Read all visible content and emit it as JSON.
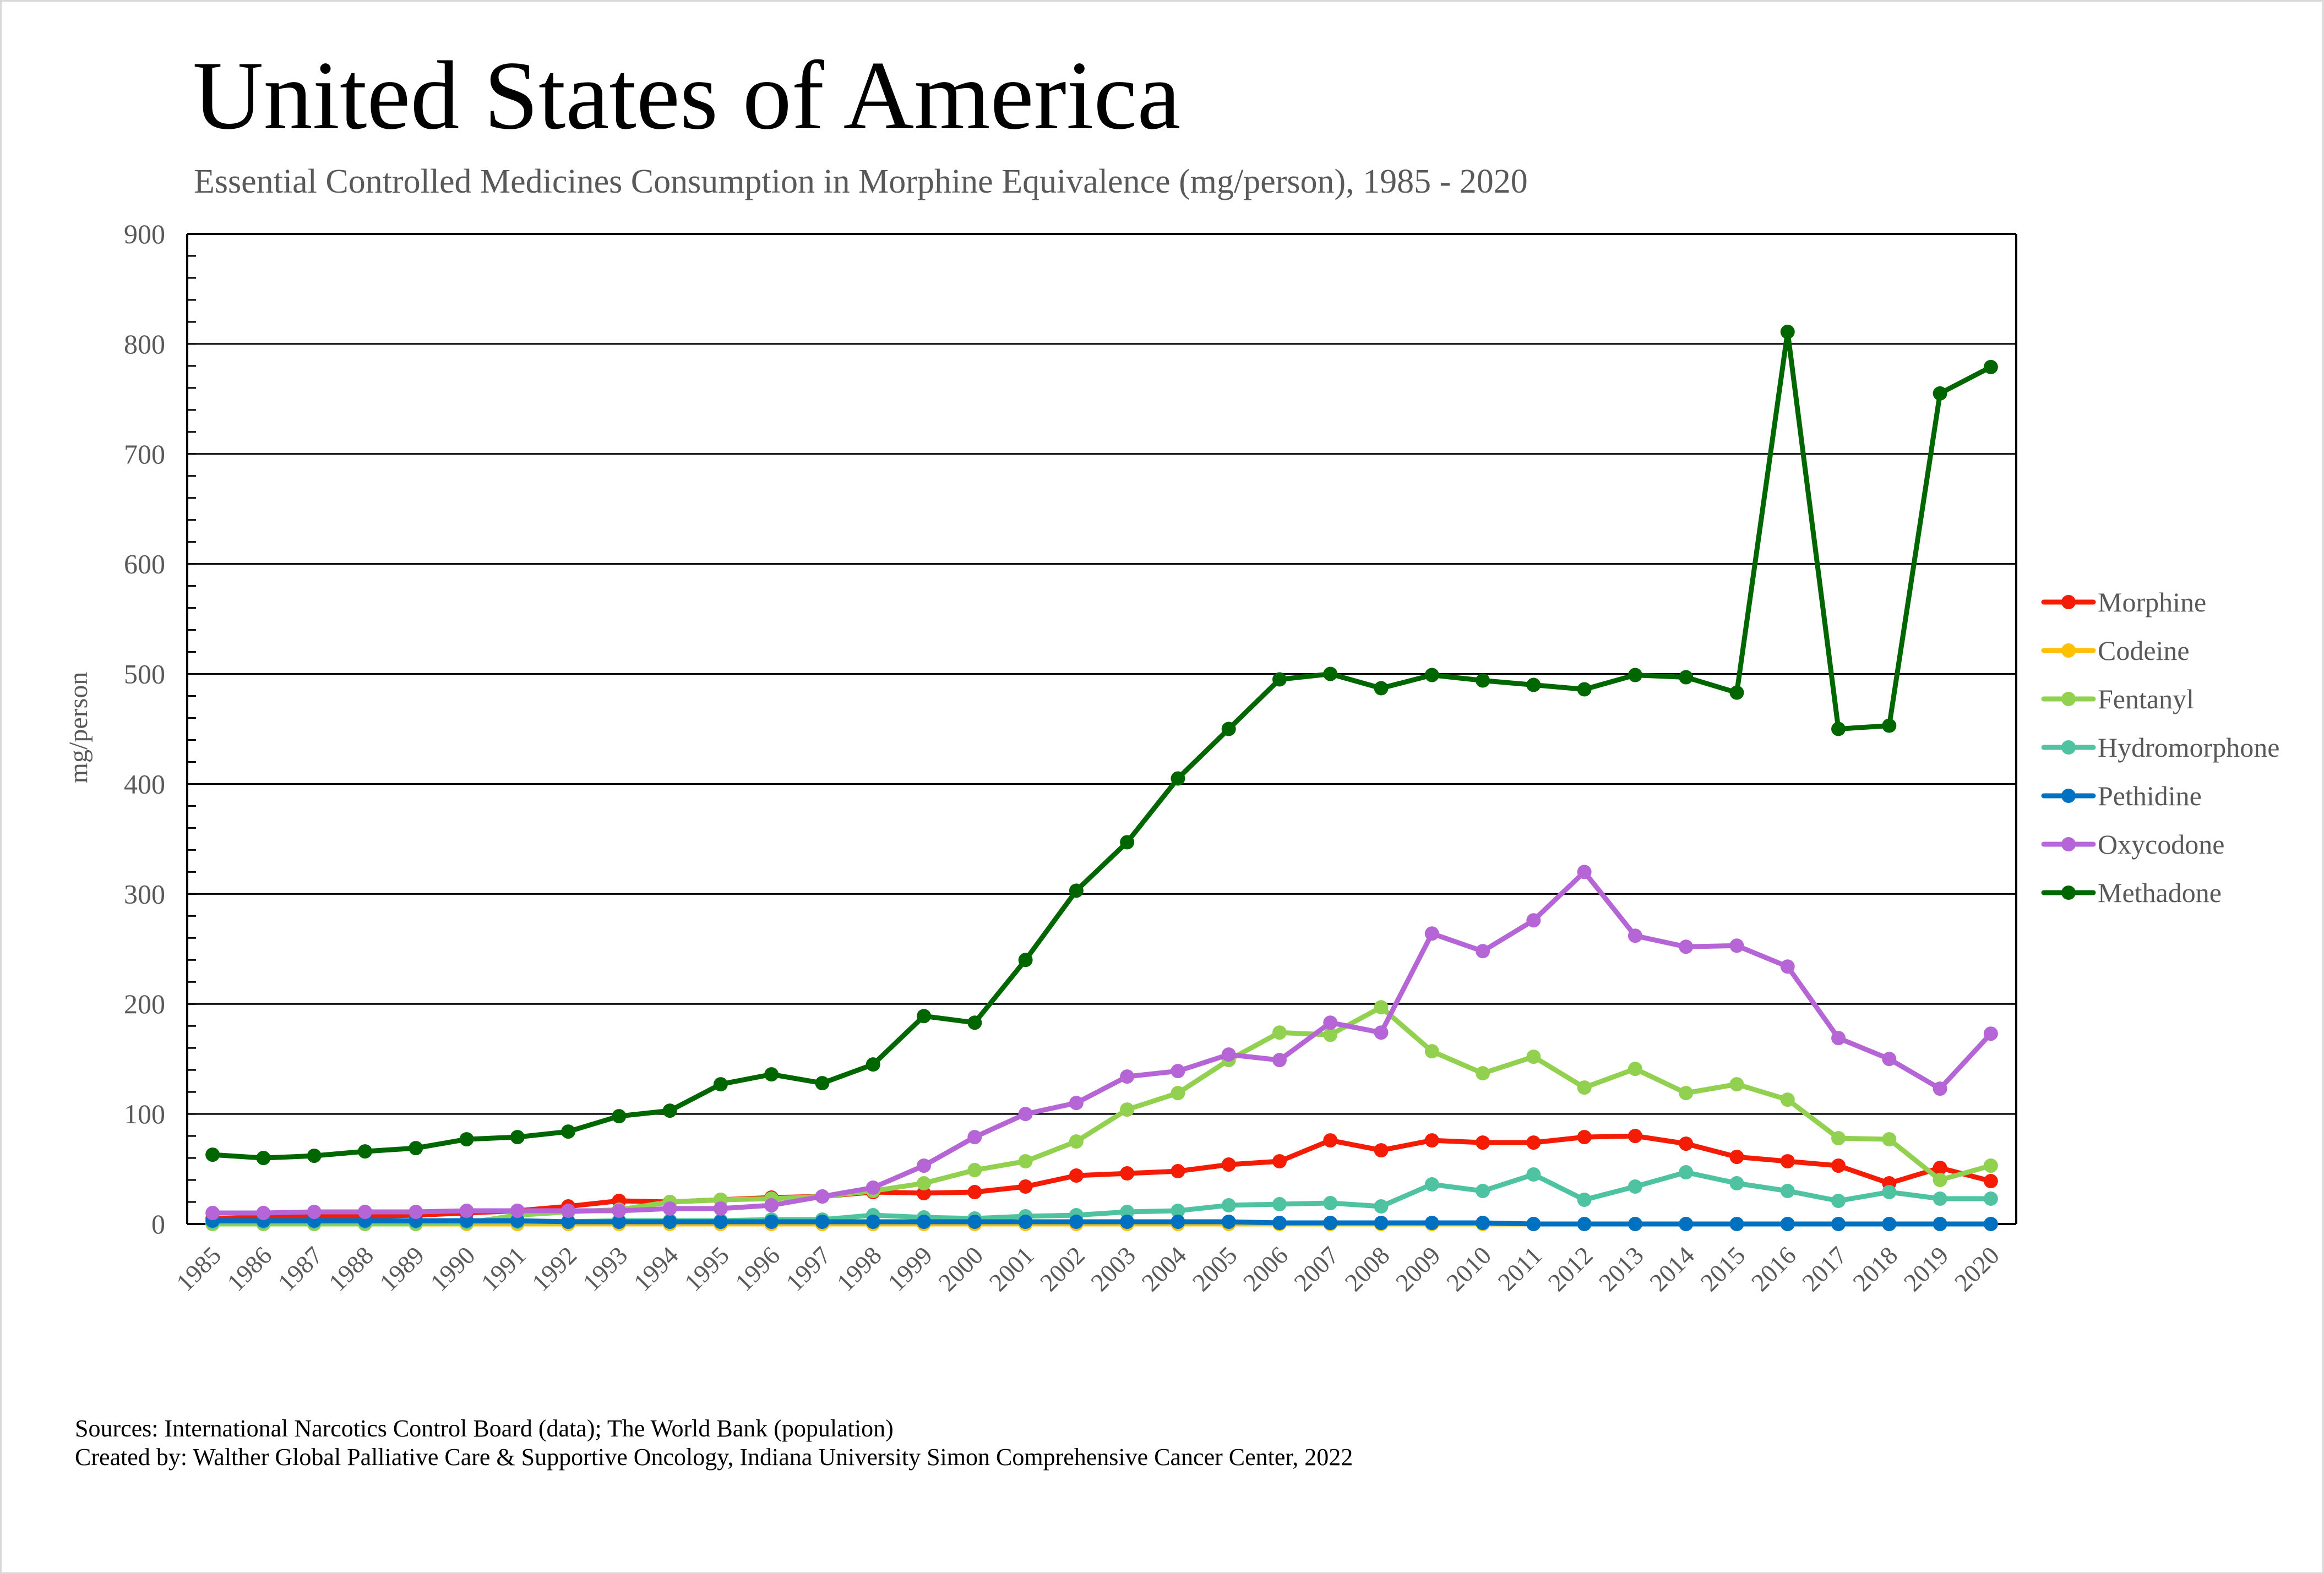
{
  "page": {
    "title": "United States of America",
    "subtitle": "Essential Controlled Medicines Consumption in Morphine Equivalence (mg/person), 1985 - 2020",
    "footer_sources": "Sources: International Narcotics Control Board (data); The World Bank (population)",
    "footer_created": "Created by: Walther Global Palliative Care & Supportive Oncology, Indiana University Simon Comprehensive Cancer Center, 2022"
  },
  "chart_data": {
    "type": "line",
    "title": "United States of America",
    "subtitle": "Essential Controlled Medicines Consumption in Morphine Equivalence (mg/person), 1985 - 2020",
    "xlabel": "",
    "ylabel": "mg/person",
    "ylim": [
      0,
      900
    ],
    "yticks": [
      0,
      100,
      200,
      300,
      400,
      500,
      600,
      700,
      800,
      900
    ],
    "grid": true,
    "legend_position": "right",
    "x": [
      "1985",
      "1986",
      "1987",
      "1988",
      "1989",
      "1990",
      "1991",
      "1992",
      "1993",
      "1994",
      "1995",
      "1996",
      "1997",
      "1998",
      "1999",
      "2000",
      "2001",
      "2002",
      "2003",
      "2004",
      "2005",
      "2006",
      "2007",
      "2008",
      "2009",
      "2010",
      "2011",
      "2012",
      "2013",
      "2014",
      "2015",
      "2016",
      "2017",
      "2018",
      "2019",
      "2020"
    ],
    "series": [
      {
        "name": "Morphine",
        "color": "#f41c04",
        "values": [
          5,
          6,
          7,
          7,
          8,
          10,
          12,
          16,
          21,
          20,
          22,
          24,
          25,
          29,
          28,
          29,
          34,
          44,
          46,
          48,
          54,
          57,
          76,
          67,
          76,
          74,
          74,
          79,
          80,
          73,
          61,
          57,
          53,
          37,
          51,
          39
        ]
      },
      {
        "name": "Codeine",
        "color": "#ffc000",
        "values": [
          0,
          0,
          0,
          0,
          0,
          0,
          0,
          0,
          0,
          0,
          0,
          0,
          0,
          0,
          0,
          0,
          0,
          0,
          0,
          0,
          0,
          0,
          0,
          0,
          0,
          0,
          0,
          0,
          0,
          0,
          0,
          0,
          0,
          0,
          0,
          0
        ]
      },
      {
        "name": "Fentanyl",
        "color": "#92d050",
        "values": [
          0,
          0,
          0,
          0,
          0,
          1,
          8,
          11,
          13,
          20,
          22,
          23,
          25,
          30,
          37,
          49,
          57,
          75,
          104,
          119,
          149,
          174,
          172,
          197,
          157,
          137,
          152,
          124,
          141,
          119,
          127,
          113,
          78,
          77,
          40,
          53
        ]
      },
      {
        "name": "Hydromorphone",
        "color": "#4fc3a1",
        "values": [
          2,
          2,
          2,
          2,
          2,
          2,
          2,
          2,
          3,
          3,
          3,
          4,
          4,
          8,
          6,
          5,
          7,
          8,
          11,
          12,
          17,
          18,
          19,
          16,
          36,
          30,
          45,
          22,
          34,
          47,
          37,
          30,
          21,
          29,
          23,
          23
        ]
      },
      {
        "name": "Pethidine",
        "color": "#0070c0",
        "values": [
          3,
          3,
          3,
          3,
          3,
          3,
          3,
          2,
          2,
          2,
          2,
          2,
          2,
          2,
          2,
          2,
          2,
          2,
          2,
          2,
          2,
          1,
          1,
          1,
          1,
          1,
          0,
          0,
          0,
          0,
          0,
          0,
          0,
          0,
          0,
          0
        ]
      },
      {
        "name": "Oxycodone",
        "color": "#b665d6",
        "values": [
          10,
          10,
          11,
          11,
          11,
          12,
          12,
          12,
          12,
          14,
          14,
          17,
          25,
          33,
          53,
          79,
          100,
          110,
          134,
          139,
          154,
          149,
          183,
          174,
          264,
          248,
          276,
          320,
          262,
          252,
          253,
          234,
          169,
          150,
          123,
          173
        ]
      },
      {
        "name": "Methadone",
        "color": "#006600",
        "values": [
          63,
          60,
          62,
          66,
          69,
          77,
          79,
          84,
          98,
          103,
          127,
          136,
          128,
          145,
          189,
          183,
          240,
          303,
          347,
          405,
          450,
          495,
          500,
          487,
          499,
          494,
          490,
          486,
          499,
          497,
          483,
          811,
          450,
          453,
          755,
          779
        ]
      }
    ]
  }
}
